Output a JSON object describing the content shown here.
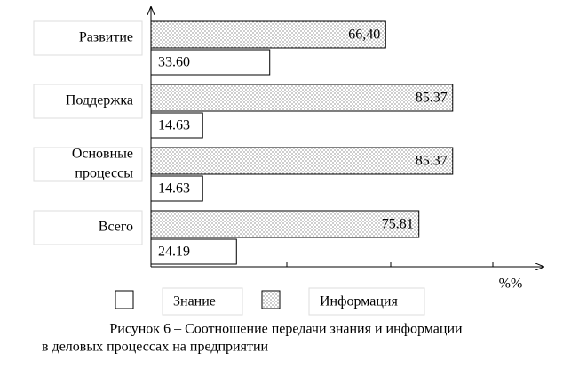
{
  "chart_data": {
    "type": "bar",
    "orientation": "horizontal",
    "categories": [
      [
        "Развитие"
      ],
      [
        "Поддержка"
      ],
      [
        "Основные",
        "процессы"
      ],
      [
        "Всего"
      ]
    ],
    "series": [
      {
        "name": "Информация",
        "color": "#ffffff",
        "pattern": "dots",
        "values": [
          66.4,
          85.37,
          85.37,
          75.81
        ],
        "value_labels": [
          "66,40",
          "85.37",
          "85.37",
          "75.81"
        ]
      },
      {
        "name": "Знание",
        "color": "#ffffff",
        "values": [
          33.6,
          14.63,
          14.63,
          24.19
        ],
        "value_labels": [
          "33.60",
          "14.63",
          "14.63",
          "24.19"
        ]
      }
    ],
    "xlim": [
      0,
      100
    ],
    "x_label": "%%",
    "caption": [
      "Рисунок 6 – Соотношение передачи знания и информации",
      "в деловых процессах на предприятии"
    ]
  }
}
